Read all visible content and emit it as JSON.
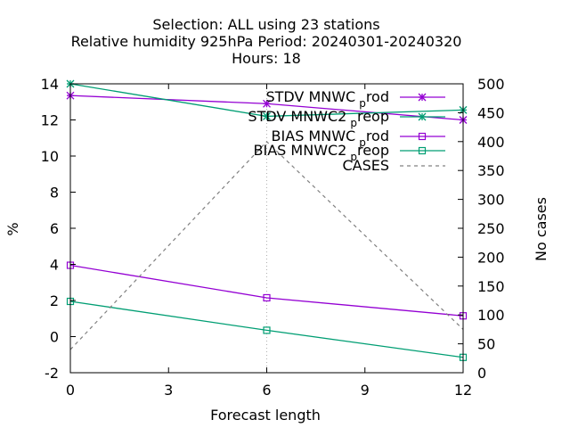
{
  "chart_data": {
    "type": "line",
    "title_lines": [
      "Selection: ALL using    23 stations",
      "Relative humidity 925hPa   Period: 20240301-20240320",
      "Hours:  18"
    ],
    "xlabel": "Forecast length",
    "ylabel": "%",
    "y2label": "No cases",
    "x_ticks": [
      "0",
      "3",
      "6",
      "9",
      "12"
    ],
    "y_ticks": [
      "-2",
      "0",
      "2",
      "4",
      "6",
      "8",
      "10",
      "12",
      "14"
    ],
    "y2_ticks": [
      "0",
      "50",
      "100",
      "150",
      "200",
      "250",
      "300",
      "350",
      "400",
      "450",
      "500"
    ],
    "xlim": [
      0,
      12
    ],
    "ylim": [
      -2,
      14
    ],
    "y2lim": [
      0,
      500
    ],
    "grid": "vertical at x=6",
    "legend_position": "top-right",
    "series": [
      {
        "name_main": "STDV MNWC",
        "name_sub": "p",
        "name_tail": "rod",
        "axis": "y",
        "color": "#9400d3",
        "marker": "star",
        "dash": "",
        "x": [
          0,
          6,
          12
        ],
        "values": [
          13.35,
          12.9,
          12.0
        ]
      },
      {
        "name_main": "STDV MNWC2",
        "name_sub": "p",
        "name_tail": "reop",
        "axis": "y",
        "color": "#009e73",
        "marker": "star",
        "dash": "",
        "x": [
          0,
          6,
          12
        ],
        "values": [
          14.0,
          12.2,
          12.55
        ]
      },
      {
        "name_main": "BIAS MNWC",
        "name_sub": "p",
        "name_tail": "rod",
        "axis": "y",
        "color": "#9400d3",
        "marker": "square",
        "dash": "",
        "x": [
          0,
          6,
          12
        ],
        "values": [
          3.95,
          2.15,
          1.15
        ]
      },
      {
        "name_main": "BIAS MNWC2",
        "name_sub": "p",
        "name_tail": "reop",
        "axis": "y",
        "color": "#009e73",
        "marker": "square",
        "dash": "",
        "x": [
          0,
          6,
          12
        ],
        "values": [
          1.95,
          0.35,
          -1.15
        ]
      },
      {
        "name_main": "CASES",
        "name_sub": "",
        "name_tail": "",
        "axis": "y2",
        "color": "#808080",
        "marker": "none",
        "dash": "4,4",
        "x": [
          0,
          6,
          12
        ],
        "values": [
          40,
          400,
          75
        ]
      }
    ]
  }
}
